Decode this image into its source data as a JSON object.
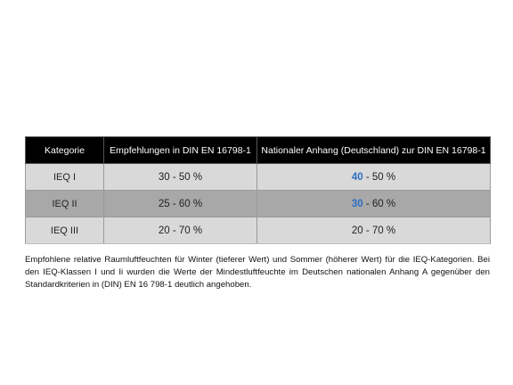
{
  "table": {
    "headers": [
      "Kategorie",
      "Empfehlungen in DIN EN 16798-1",
      "Nationaler Anhang (Deutschland) zur DIN EN 16798-1"
    ],
    "rows": [
      {
        "category": "IEQ I",
        "din": "30 - 50 %",
        "national_highlight": "40",
        "national_rest": " - 50 %"
      },
      {
        "category": "IEQ II",
        "din": "25 - 60 %",
        "national_highlight": "30",
        "national_rest": " - 60 %"
      },
      {
        "category": "IEQ III",
        "din": "20 - 70 %",
        "national_highlight": "",
        "national_rest": "20 - 70 %"
      }
    ]
  },
  "caption": "Empfohlene relative Raumluftfeuchten für Winter (tieferer Wert) und Sommer (höherer Wert) für die IEQ-Kategorien. Bei den IEQ-Klassen I und Ii wurden die Werte der Mindestluftfeuchte im Deutschen nationalen Anhang A gegenüber den Standardkriterien in (DIN) EN 16 798-1 deutlich angehoben.",
  "colors": {
    "header_bg": "#000000",
    "row_light": "#d9d9d9",
    "row_dark": "#a8a8a8",
    "highlight": "#2b6fc4"
  }
}
